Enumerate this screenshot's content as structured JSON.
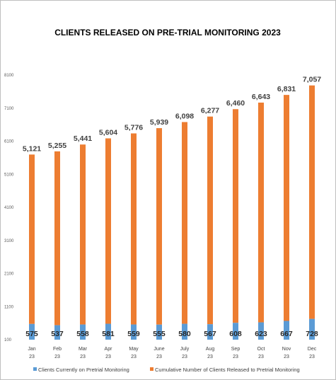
{
  "chart_data": {
    "type": "bar",
    "stacked": true,
    "title": "CLIENTS RELEASED ON PRE-TRIAL MONITORING 2023",
    "categories": [
      [
        "Jan",
        "23"
      ],
      [
        "Feb",
        "23"
      ],
      [
        "Mar",
        "23"
      ],
      [
        "Apr",
        "23"
      ],
      [
        "May",
        "23"
      ],
      [
        "June",
        "23"
      ],
      [
        "July",
        "23"
      ],
      [
        "Aug",
        "23"
      ],
      [
        "Sep",
        "23"
      ],
      [
        "Oct",
        "23"
      ],
      [
        "Nov",
        "23"
      ],
      [
        "Dec",
        "23"
      ]
    ],
    "series": [
      {
        "name": "Clients Currently on Pretrial Monitoring",
        "color": "#5b9bd5",
        "values": [
          575,
          537,
          558,
          581,
          559,
          555,
          580,
          567,
          608,
          623,
          667,
          728
        ]
      },
      {
        "name": "Cumulative Number of Clients Released to Pretrial Monitoring",
        "color": "#ed7d31",
        "values": [
          5121,
          5255,
          5441,
          5604,
          5776,
          5939,
          6098,
          6277,
          6460,
          6643,
          6831,
          7057
        ]
      }
    ],
    "y_ticks": [
      100,
      1100,
      2100,
      3100,
      4100,
      5100,
      6100,
      7100,
      8100
    ],
    "ylim": [
      100,
      8100
    ],
    "grid": false,
    "legend_position": "bottom"
  }
}
